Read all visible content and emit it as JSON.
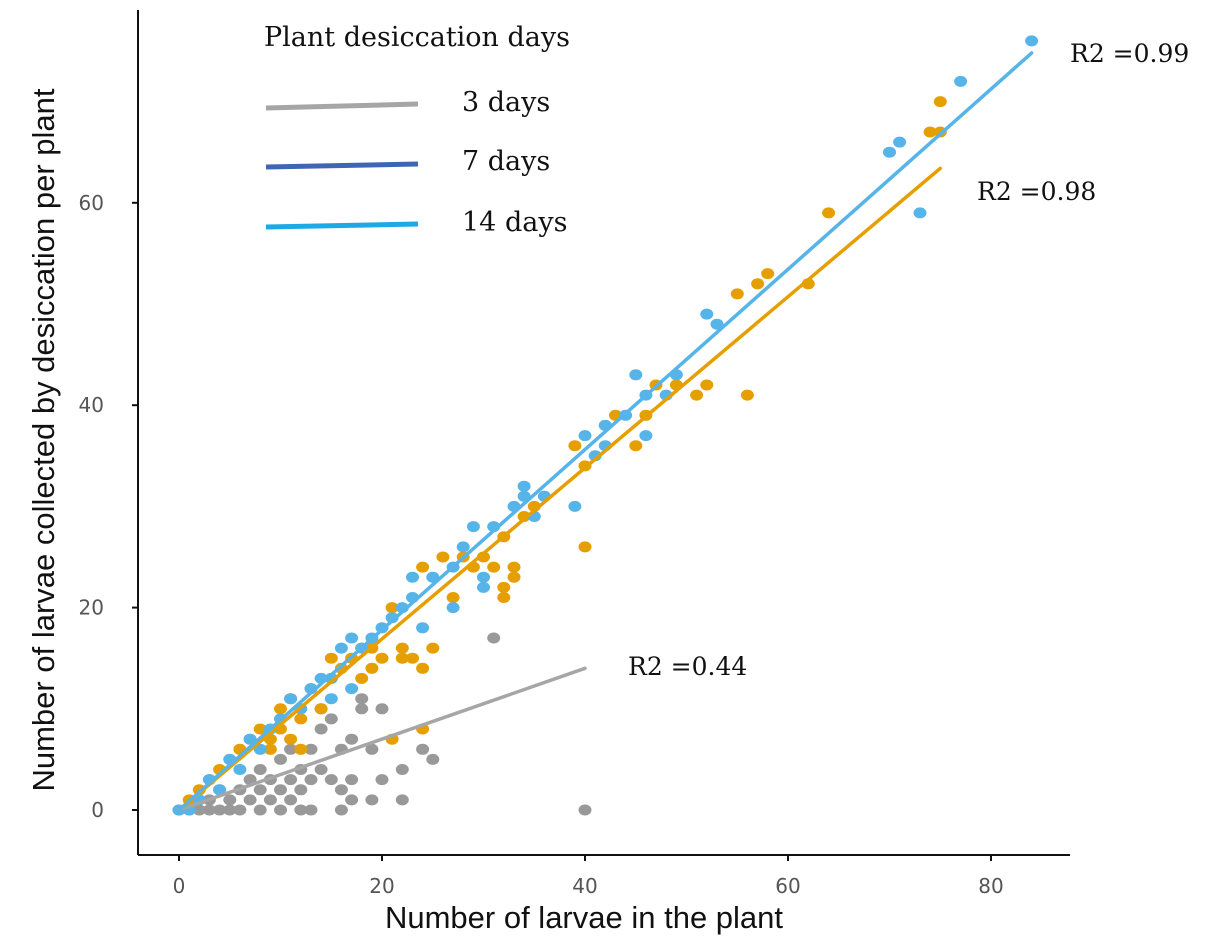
{
  "chart_data": {
    "type": "scatter",
    "xlabel": "Number of larvae in the plant",
    "ylabel": "Number of larvae collected by desiccation per plant",
    "xlim": [
      -4,
      88
    ],
    "ylim": [
      -4,
      79
    ],
    "xticks": [
      "0",
      "20",
      "40",
      "60",
      "80"
    ],
    "yticks": [
      "0",
      "20",
      "40",
      "60"
    ],
    "grid": false,
    "legend": {
      "title": "Plant desiccation days",
      "placement": "top-left",
      "entries": [
        {
          "label": "3 days",
          "color": "#a6a6a6"
        },
        {
          "label": "7 days",
          "color": "#3e66b5"
        },
        {
          "label": "14 days",
          "color": "#1ea9e6"
        }
      ]
    },
    "series": [
      {
        "color": "#999999",
        "r2": "R2 =0.44",
        "points": [
          [
            0,
            0
          ],
          [
            1,
            0
          ],
          [
            2,
            0
          ],
          [
            3,
            1
          ],
          [
            3,
            0
          ],
          [
            4,
            2
          ],
          [
            4,
            0
          ],
          [
            5,
            0
          ],
          [
            5,
            1
          ],
          [
            6,
            2
          ],
          [
            6,
            0
          ],
          [
            7,
            1
          ],
          [
            7,
            3
          ],
          [
            8,
            0
          ],
          [
            8,
            2
          ],
          [
            8,
            4
          ],
          [
            9,
            1
          ],
          [
            9,
            3
          ],
          [
            10,
            0
          ],
          [
            10,
            2
          ],
          [
            10,
            5
          ],
          [
            11,
            1
          ],
          [
            11,
            3
          ],
          [
            11,
            6
          ],
          [
            12,
            2
          ],
          [
            12,
            4
          ],
          [
            12,
            0
          ],
          [
            13,
            0
          ],
          [
            13,
            3
          ],
          [
            13,
            6
          ],
          [
            14,
            4
          ],
          [
            14,
            8
          ],
          [
            14,
            10
          ],
          [
            15,
            3
          ],
          [
            15,
            9
          ],
          [
            16,
            0
          ],
          [
            16,
            2
          ],
          [
            16,
            6
          ],
          [
            17,
            3
          ],
          [
            17,
            7
          ],
          [
            17,
            1
          ],
          [
            18,
            11
          ],
          [
            18,
            10
          ],
          [
            19,
            6
          ],
          [
            19,
            1
          ],
          [
            20,
            3
          ],
          [
            20,
            10
          ],
          [
            22,
            1
          ],
          [
            22,
            4
          ],
          [
            24,
            6
          ],
          [
            25,
            5
          ],
          [
            31,
            17
          ],
          [
            40,
            0
          ]
        ]
      },
      {
        "color": "#e69f00",
        "r2": "R2 =0.98",
        "points": [
          [
            0,
            0
          ],
          [
            1,
            1
          ],
          [
            2,
            2
          ],
          [
            3,
            3
          ],
          [
            4,
            4
          ],
          [
            5,
            5
          ],
          [
            6,
            6
          ],
          [
            7,
            7
          ],
          [
            8,
            8
          ],
          [
            9,
            7
          ],
          [
            9,
            6
          ],
          [
            10,
            10
          ],
          [
            10,
            8
          ],
          [
            11,
            11
          ],
          [
            11,
            7
          ],
          [
            12,
            6
          ],
          [
            12,
            9
          ],
          [
            13,
            12
          ],
          [
            14,
            10
          ],
          [
            15,
            15
          ],
          [
            15,
            13
          ],
          [
            16,
            14
          ],
          [
            17,
            15
          ],
          [
            18,
            13
          ],
          [
            18,
            16
          ],
          [
            19,
            16
          ],
          [
            19,
            14
          ],
          [
            20,
            15
          ],
          [
            21,
            20
          ],
          [
            21,
            7
          ],
          [
            22,
            16
          ],
          [
            22,
            15
          ],
          [
            23,
            15
          ],
          [
            24,
            24
          ],
          [
            24,
            14
          ],
          [
            24,
            8
          ],
          [
            25,
            16
          ],
          [
            26,
            25
          ],
          [
            27,
            21
          ],
          [
            28,
            25
          ],
          [
            29,
            24
          ],
          [
            30,
            25
          ],
          [
            31,
            24
          ],
          [
            32,
            27
          ],
          [
            32,
            22
          ],
          [
            32,
            21
          ],
          [
            33,
            24
          ],
          [
            33,
            23
          ],
          [
            34,
            29
          ],
          [
            35,
            30
          ],
          [
            39,
            36
          ],
          [
            40,
            34
          ],
          [
            40,
            26
          ],
          [
            42,
            38
          ],
          [
            43,
            39
          ],
          [
            45,
            36
          ],
          [
            46,
            39
          ],
          [
            47,
            42
          ],
          [
            49,
            42
          ],
          [
            51,
            41
          ],
          [
            52,
            42
          ],
          [
            55,
            51
          ],
          [
            56,
            41
          ],
          [
            57,
            52
          ],
          [
            58,
            53
          ],
          [
            62,
            52
          ],
          [
            64,
            59
          ],
          [
            74,
            67
          ],
          [
            75,
            67
          ],
          [
            75,
            70
          ]
        ]
      },
      {
        "color": "#56b4e9",
        "r2": "R2 =0.99",
        "points": [
          [
            0,
            0
          ],
          [
            1,
            0
          ],
          [
            2,
            1
          ],
          [
            3,
            3
          ],
          [
            4,
            2
          ],
          [
            5,
            5
          ],
          [
            6,
            4
          ],
          [
            7,
            7
          ],
          [
            8,
            6
          ],
          [
            9,
            8
          ],
          [
            10,
            9
          ],
          [
            11,
            11
          ],
          [
            12,
            10
          ],
          [
            13,
            12
          ],
          [
            14,
            13
          ],
          [
            15,
            13
          ],
          [
            15,
            11
          ],
          [
            16,
            16
          ],
          [
            17,
            17
          ],
          [
            17,
            12
          ],
          [
            18,
            16
          ],
          [
            19,
            17
          ],
          [
            20,
            18
          ],
          [
            21,
            19
          ],
          [
            22,
            20
          ],
          [
            23,
            21
          ],
          [
            23,
            23
          ],
          [
            24,
            18
          ],
          [
            25,
            23
          ],
          [
            27,
            24
          ],
          [
            27,
            20
          ],
          [
            28,
            26
          ],
          [
            29,
            28
          ],
          [
            30,
            23
          ],
          [
            30,
            22
          ],
          [
            31,
            28
          ],
          [
            33,
            30
          ],
          [
            34,
            31
          ],
          [
            34,
            32
          ],
          [
            35,
            29
          ],
          [
            36,
            31
          ],
          [
            39,
            30
          ],
          [
            40,
            37
          ],
          [
            41,
            35
          ],
          [
            42,
            36
          ],
          [
            42,
            38
          ],
          [
            44,
            39
          ],
          [
            45,
            43
          ],
          [
            46,
            41
          ],
          [
            46,
            37
          ],
          [
            48,
            41
          ],
          [
            49,
            43
          ],
          [
            52,
            49
          ],
          [
            53,
            48
          ],
          [
            70,
            65
          ],
          [
            71,
            66
          ],
          [
            73,
            59
          ],
          [
            77,
            72
          ],
          [
            84,
            76
          ]
        ]
      }
    ],
    "fits": [
      {
        "color": "#a6a6a6",
        "x0": 0,
        "y0": 0,
        "x1": 40,
        "y1": 14
      },
      {
        "color": "#e69f00",
        "x0": 0,
        "y0": 0,
        "x1": 75,
        "y1": 63.4
      },
      {
        "color": "#56b4e9",
        "x0": 0,
        "y0": 0,
        "x1": 84,
        "y1": 74.8
      }
    ]
  }
}
